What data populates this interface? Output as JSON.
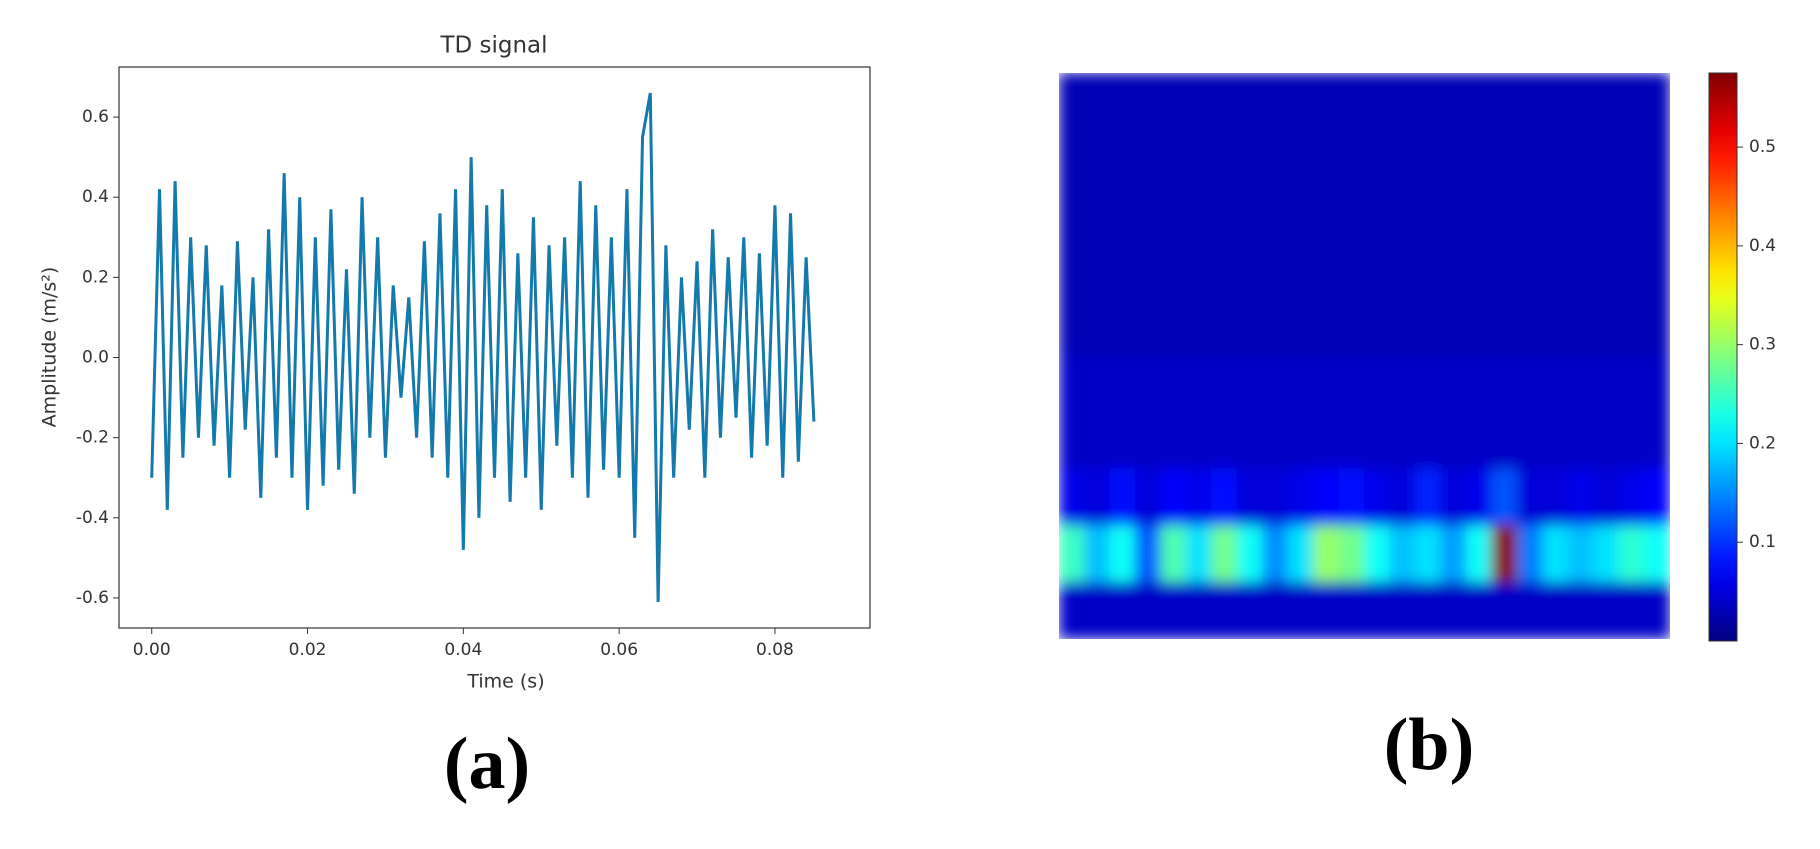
{
  "chart_data": [
    {
      "type": "line",
      "title": "TD signal",
      "xlabel": "Time (s)",
      "ylabel": "Amplitude (m/s²)",
      "panel_label": "(a)",
      "color": "#1479ab",
      "x": [
        0,
        0.001,
        0.002,
        0.003,
        0.004,
        0.005,
        0.006,
        0.007,
        0.008,
        0.009,
        0.01,
        0.011,
        0.012,
        0.013,
        0.014,
        0.015,
        0.016,
        0.017,
        0.018,
        0.019,
        0.02,
        0.021,
        0.022,
        0.023,
        0.024,
        0.025,
        0.026,
        0.027,
        0.028,
        0.029,
        0.03,
        0.031,
        0.032,
        0.033,
        0.034,
        0.035,
        0.036,
        0.037,
        0.038,
        0.039,
        0.04,
        0.041,
        0.042,
        0.043,
        0.044,
        0.045,
        0.046,
        0.047,
        0.048,
        0.049,
        0.05,
        0.051,
        0.052,
        0.053,
        0.054,
        0.055,
        0.056,
        0.057,
        0.058,
        0.059,
        0.06,
        0.061,
        0.062,
        0.063,
        0.064,
        0.065,
        0.066,
        0.067,
        0.068,
        0.069,
        0.07,
        0.071,
        0.072,
        0.073,
        0.074,
        0.075,
        0.076,
        0.077,
        0.078,
        0.079,
        0.08,
        0.081,
        0.082,
        0.083,
        0.084,
        0.085
      ],
      "values": [
        -0.3,
        0.42,
        -0.38,
        0.44,
        -0.25,
        0.3,
        -0.2,
        0.28,
        -0.22,
        0.18,
        -0.3,
        0.29,
        -0.18,
        0.2,
        -0.35,
        0.32,
        -0.25,
        0.46,
        -0.3,
        0.4,
        -0.38,
        0.3,
        -0.32,
        0.37,
        -0.28,
        0.22,
        -0.34,
        0.4,
        -0.2,
        0.3,
        -0.25,
        0.18,
        -0.1,
        0.15,
        -0.2,
        0.29,
        -0.25,
        0.36,
        -0.3,
        0.42,
        -0.48,
        0.5,
        -0.4,
        0.38,
        -0.3,
        0.42,
        -0.36,
        0.26,
        -0.3,
        0.35,
        -0.38,
        0.28,
        -0.22,
        0.3,
        -0.3,
        0.44,
        -0.35,
        0.38,
        -0.28,
        0.3,
        -0.3,
        0.42,
        -0.45,
        0.55,
        0.66,
        -0.61,
        0.28,
        -0.3,
        0.2,
        -0.18,
        0.24,
        -0.3,
        0.32,
        -0.2,
        0.25,
        -0.15,
        0.3,
        -0.25,
        0.26,
        -0.22,
        0.38,
        -0.3,
        0.36,
        -0.26,
        0.25,
        -0.16
      ],
      "xlim": [
        -0.0042,
        0.0922
      ],
      "xticks": [
        {
          "value": 0,
          "label": "0.00"
        },
        {
          "value": 0.02,
          "label": "0.02"
        },
        {
          "value": 0.04,
          "label": "0.04"
        },
        {
          "value": 0.06,
          "label": "0.06"
        },
        {
          "value": 0.08,
          "label": "0.08"
        }
      ],
      "ylim": [
        -0.675,
        0.725
      ],
      "yticks": [
        0.6,
        0.4,
        0.2,
        {
          "value": 0,
          "label": "0.0"
        },
        -0.2,
        -0.4,
        -0.6
      ]
    },
    {
      "type": "heatmap",
      "panel_label": "(b)",
      "colormap": "jet",
      "zlim": [
        0,
        0.575
      ],
      "zticks": [
        0.1,
        0.2,
        0.3,
        0.4,
        0.5
      ],
      "z": [
        [
          0.03,
          0.03,
          0.03,
          0.03,
          0.03,
          0.03,
          0.03,
          0.03,
          0.03,
          0.03,
          0.03,
          0.03,
          0.03,
          0.03,
          0.03,
          0.03,
          0.03,
          0.03,
          0.03,
          0.03,
          0.03,
          0.03,
          0.03,
          0.03
        ],
        [
          0.03,
          0.03,
          0.03,
          0.03,
          0.03,
          0.03,
          0.03,
          0.03,
          0.03,
          0.03,
          0.03,
          0.03,
          0.03,
          0.03,
          0.03,
          0.03,
          0.03,
          0.03,
          0.03,
          0.03,
          0.03,
          0.03,
          0.03,
          0.03
        ],
        [
          0.03,
          0.03,
          0.03,
          0.03,
          0.03,
          0.03,
          0.03,
          0.03,
          0.03,
          0.03,
          0.03,
          0.03,
          0.03,
          0.03,
          0.03,
          0.03,
          0.03,
          0.03,
          0.03,
          0.03,
          0.03,
          0.03,
          0.03,
          0.03
        ],
        [
          0.03,
          0.03,
          0.03,
          0.03,
          0.03,
          0.03,
          0.03,
          0.03,
          0.03,
          0.03,
          0.03,
          0.03,
          0.03,
          0.03,
          0.03,
          0.03,
          0.03,
          0.03,
          0.03,
          0.03,
          0.03,
          0.03,
          0.03,
          0.03
        ],
        [
          0.03,
          0.03,
          0.03,
          0.03,
          0.03,
          0.03,
          0.03,
          0.03,
          0.03,
          0.03,
          0.03,
          0.03,
          0.03,
          0.03,
          0.03,
          0.03,
          0.03,
          0.03,
          0.03,
          0.03,
          0.03,
          0.03,
          0.03,
          0.03
        ],
        [
          0.04,
          0.04,
          0.04,
          0.04,
          0.04,
          0.04,
          0.04,
          0.04,
          0.04,
          0.04,
          0.04,
          0.04,
          0.04,
          0.04,
          0.04,
          0.04,
          0.04,
          0.04,
          0.04,
          0.04,
          0.04,
          0.04,
          0.04,
          0.04
        ],
        [
          0.04,
          0.04,
          0.04,
          0.04,
          0.04,
          0.04,
          0.04,
          0.04,
          0.04,
          0.04,
          0.04,
          0.04,
          0.04,
          0.04,
          0.04,
          0.04,
          0.04,
          0.04,
          0.04,
          0.04,
          0.04,
          0.04,
          0.04,
          0.04
        ],
        [
          0.06,
          0.05,
          0.08,
          0.05,
          0.07,
          0.06,
          0.08,
          0.05,
          0.05,
          0.06,
          0.07,
          0.08,
          0.06,
          0.05,
          0.09,
          0.05,
          0.06,
          0.12,
          0.05,
          0.05,
          0.06,
          0.05,
          0.06,
          0.07
        ],
        [
          0.25,
          0.18,
          0.22,
          0.12,
          0.26,
          0.2,
          0.28,
          0.22,
          0.15,
          0.2,
          0.3,
          0.28,
          0.22,
          0.18,
          0.2,
          0.16,
          0.22,
          0.57,
          0.14,
          0.2,
          0.18,
          0.2,
          0.24,
          0.22
        ],
        [
          0.04,
          0.04,
          0.04,
          0.04,
          0.04,
          0.04,
          0.04,
          0.04,
          0.04,
          0.04,
          0.04,
          0.04,
          0.04,
          0.04,
          0.04,
          0.04,
          0.04,
          0.04,
          0.04,
          0.04,
          0.04,
          0.04,
          0.04,
          0.04
        ]
      ]
    }
  ]
}
